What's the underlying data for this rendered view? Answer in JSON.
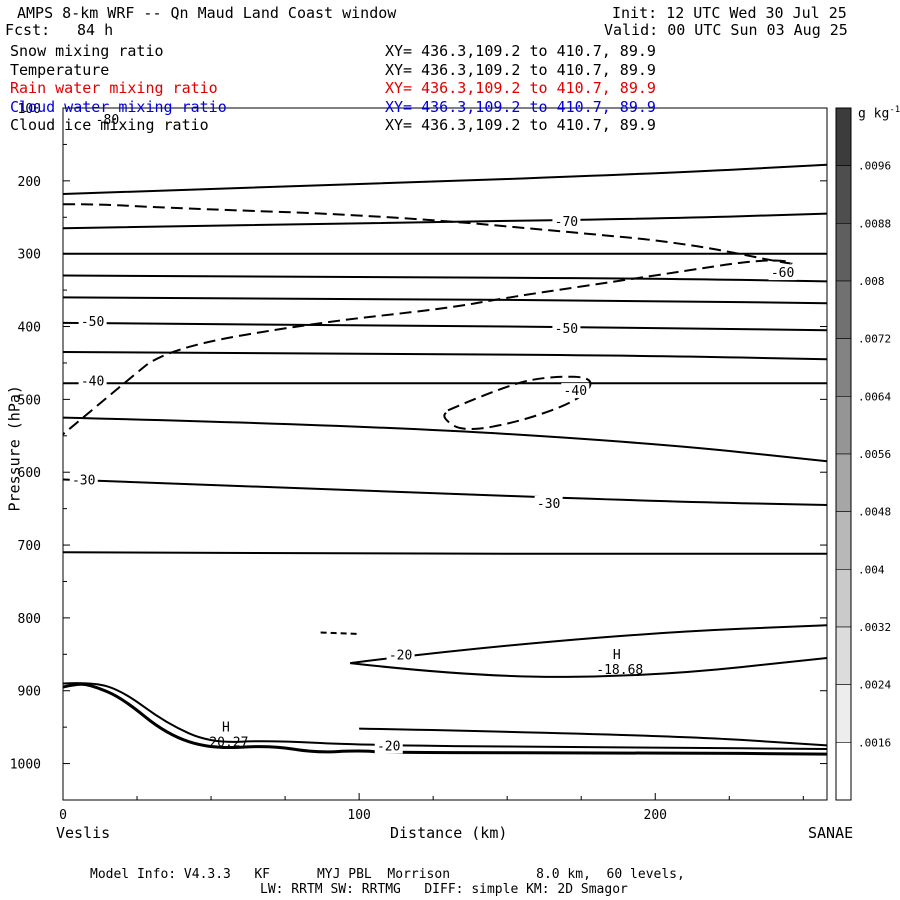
{
  "header": {
    "title": "AMPS 8-km WRF -- Qn Maud Land Coast window",
    "init": "Init: 12 UTC Wed 30 Jul 25",
    "fcst_label": "Fcst:",
    "fcst_value": "84 h",
    "valid": "Valid: 00 UTC Sun 03 Aug 25"
  },
  "legend": [
    {
      "name": "Snow mixing ratio",
      "xy": "XY= 436.3,109.2 to 410.7, 89.9",
      "color": "#000000"
    },
    {
      "name": "Temperature",
      "xy": "XY= 436.3,109.2 to 410.7, 89.9",
      "color": "#000000"
    },
    {
      "name": "Rain water mixing ratio",
      "xy": "XY= 436.3,109.2 to 410.7, 89.9",
      "color": "#e00000"
    },
    {
      "name": "Cloud water mixing ratio",
      "xy": "XY= 436.3,109.2 to 410.7, 89.9",
      "color": "#0000e0"
    },
    {
      "name": "Cloud ice mixing ratio",
      "xy": "XY= 436.3,109.2 to 410.7, 89.9",
      "color": "#000000"
    }
  ],
  "footer": {
    "line1": "Model Info: V4.3.3   KF      MYJ PBL  Morrison           8.0 km,  60 levels,",
    "line2": "LW: RRTM SW: RRTMG   DIFF: simple KM: 2D Smagor"
  },
  "colorbar": {
    "unit_base": "g kg",
    "unit_exp": "-1",
    "ticks": [
      ".0096",
      ".0088",
      ".008",
      ".0072",
      ".0064",
      ".0056",
      ".0048",
      ".004",
      ".0032",
      ".0024",
      ".0016"
    ]
  },
  "chart_data": {
    "type": "line",
    "subtype": "vertical cross-section contour",
    "xlabel": "Distance (km)",
    "ylabel": "Pressure (hPa)",
    "xlim": [
      0,
      258
    ],
    "ylim": [
      1050,
      100
    ],
    "xticks": [
      0,
      100,
      200
    ],
    "yticks": [
      100,
      200,
      300,
      400,
      500,
      600,
      700,
      800,
      900,
      1000
    ],
    "left_endpoint": "Veslis",
    "right_endpoint": "SANAE",
    "temperature_labels": [
      {
        "text": "-80",
        "x": 15,
        "p": 118
      },
      {
        "text": "-70",
        "x": 170,
        "p": 258
      },
      {
        "text": "-60",
        "x": 243,
        "p": 328
      },
      {
        "text": "-50",
        "x": 10,
        "p": 395
      },
      {
        "text": "-50",
        "x": 170,
        "p": 405
      },
      {
        "text": "-40",
        "x": 10,
        "p": 477
      },
      {
        "text": "-40",
        "x": 173,
        "p": 490
      },
      {
        "text": "-30",
        "x": 7,
        "p": 613
      },
      {
        "text": "-30",
        "x": 164,
        "p": 645
      },
      {
        "text": "-20",
        "x": 114,
        "p": 853
      },
      {
        "text": "-20",
        "x": 110,
        "p": 978
      }
    ],
    "extrema": [
      {
        "type": "H",
        "value": "20.27",
        "x": 55,
        "p": 970
      },
      {
        "type": "H",
        "value": "-18.68",
        "x": 187,
        "p": 870
      }
    ],
    "isotherms": [
      {
        "x": [
          0,
          100,
          200,
          258
        ],
        "p": [
          218,
          205,
          190,
          178
        ]
      },
      {
        "x": [
          0,
          100,
          200,
          258
        ],
        "p": [
          265,
          258,
          252,
          245
        ]
      },
      {
        "x": [
          0,
          100,
          200,
          258
        ],
        "p": [
          300,
          300,
          300,
          300
        ]
      },
      {
        "x": [
          0,
          100,
          200,
          258
        ],
        "p": [
          330,
          332,
          334,
          338
        ]
      },
      {
        "x": [
          0,
          100,
          200,
          258
        ],
        "p": [
          360,
          362,
          365,
          368
        ]
      },
      {
        "x": [
          0,
          100,
          200,
          258
        ],
        "p": [
          395,
          398,
          402,
          405
        ]
      },
      {
        "x": [
          0,
          100,
          200,
          258
        ],
        "p": [
          435,
          437,
          440,
          445
        ]
      },
      {
        "x": [
          0,
          100,
          200,
          258
        ],
        "p": [
          478,
          478,
          478,
          478
        ]
      },
      {
        "x": [
          0,
          100,
          200,
          258
        ],
        "p": [
          525,
          535,
          560,
          585
        ]
      },
      {
        "x": [
          0,
          100,
          200,
          258
        ],
        "p": [
          610,
          625,
          640,
          645
        ]
      },
      {
        "x": [
          0,
          100,
          200,
          258
        ],
        "p": [
          710,
          712,
          712,
          712
        ]
      },
      {
        "x": [
          97,
          130,
          200,
          258
        ],
        "p": [
          862,
          845,
          820,
          810
        ]
      },
      {
        "x": [
          97,
          140,
          200,
          258
        ],
        "p": [
          862,
          882,
          880,
          855
        ]
      },
      {
        "x": [
          100,
          200,
          258
        ],
        "p": [
          952,
          960,
          975
        ]
      },
      {
        "x": [
          0,
          10,
          20,
          35,
          50,
          70,
          100,
          200,
          258
        ],
        "p": [
          890,
          888,
          900,
          945,
          972,
          968,
          975,
          978,
          980
        ]
      }
    ],
    "snow_contour": {
      "x": [
        0,
        12,
        30,
        55,
        90,
        130,
        170,
        210,
        250,
        240,
        200,
        150,
        130,
        85,
        35,
        20,
        0
      ],
      "p": [
        232,
        232,
        236,
        240,
        245,
        255,
        270,
        285,
        318,
        305,
        330,
        360,
        375,
        395,
        430,
        480,
        548
      ]
    },
    "snow_closed_contour": {
      "x": [
        130,
        150,
        165,
        180,
        175,
        155,
        135,
        128,
        130
      ],
      "p": [
        515,
        480,
        468,
        470,
        500,
        530,
        545,
        525,
        515
      ]
    },
    "terrain": {
      "x": [
        0,
        5,
        10,
        20,
        35,
        50,
        70,
        85,
        100,
        110,
        200,
        258
      ],
      "p": [
        895,
        890,
        893,
        910,
        960,
        980,
        975,
        985,
        982,
        985,
        985,
        987
      ]
    }
  }
}
